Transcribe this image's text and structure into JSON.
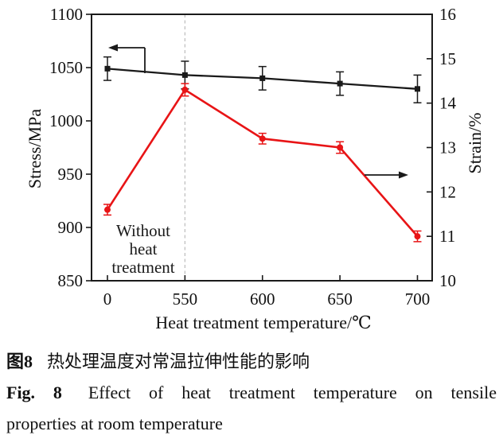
{
  "chart_data": {
    "type": "line",
    "categories": [
      "0",
      "550",
      "600",
      "650",
      "700"
    ],
    "series": [
      {
        "name": "stress",
        "axis": "left",
        "marker": "square",
        "color": "#1a1a1a",
        "values": [
          1049,
          1043,
          1040,
          1035,
          1030
        ],
        "errors": [
          11,
          13,
          11,
          11,
          13
        ]
      },
      {
        "name": "strain",
        "axis": "right",
        "marker": "circle",
        "color": "#e81416",
        "values": [
          11.6,
          14.3,
          13.2,
          13.0,
          11.0
        ],
        "errors": [
          0.12,
          0.14,
          0.12,
          0.13,
          0.12
        ]
      }
    ],
    "left_axis": {
      "label": "Stress/MPa",
      "min": 850,
      "max": 1100,
      "step": 50
    },
    "right_axis": {
      "label": "Strain/%",
      "min": 10,
      "max": 16,
      "step": 1
    },
    "xlabel": "Heat treatment temperature/℃",
    "annotation": "Without\nheat\ntreatment",
    "dashed_guide_category_index": 1,
    "dashed_guide_color": "#c0c0c0",
    "grid": false,
    "legend": "none (axis pointer arrows instead)"
  },
  "caption": {
    "zh_prefix": "图8",
    "zh_text": "热处理温度对常温拉伸性能的影响",
    "en_prefix": "Fig. 8",
    "en_line1": "Effect of heat treatment temperature on tensile",
    "en_line2": "properties at room temperature"
  }
}
